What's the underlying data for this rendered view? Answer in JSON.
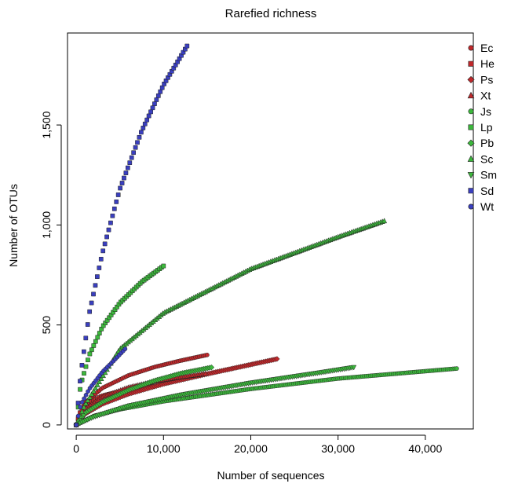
{
  "chart_data": {
    "type": "scatter",
    "title": "Rarefied richness",
    "xlabel": "Number of sequences",
    "ylabel": "Number of OTUs",
    "xlim": [
      -1000,
      45500
    ],
    "ylim": [
      -20,
      1960
    ],
    "x_ticks": [
      0,
      10000,
      20000,
      30000,
      40000
    ],
    "x_tick_labels": [
      "0",
      "10,000",
      "20,000",
      "30,000",
      "40,000"
    ],
    "y_ticks": [
      0,
      500,
      1000,
      1500
    ],
    "y_tick_labels": [
      "0",
      "500",
      "1,000",
      "1,500"
    ],
    "grid": false,
    "legend_position": "top-right",
    "colors": {
      "red": "#c0282b",
      "green": "#3cb83c",
      "blue": "#3a3fbf"
    },
    "series": [
      {
        "name": "Ec",
        "color": "#c0282b",
        "marker": "circle",
        "x": [
          0,
          1000,
          3000,
          6000,
          9000,
          12000,
          15000
        ],
        "y": [
          0,
          110,
          185,
          248,
          290,
          322,
          350
        ]
      },
      {
        "name": "He",
        "color": "#c0282b",
        "marker": "square",
        "x": [
          0,
          500,
          1500,
          3000,
          5000,
          7000,
          8800
        ],
        "y": [
          0,
          70,
          112,
          145,
          167,
          182,
          192
        ]
      },
      {
        "name": "Ps",
        "color": "#c0282b",
        "marker": "diamond",
        "x": [
          0,
          1000,
          3000,
          6000,
          10000,
          15000,
          23000
        ],
        "y": [
          0,
          55,
          105,
          155,
          205,
          255,
          330
        ]
      },
      {
        "name": "Xt",
        "color": "#c0282b",
        "marker": "triangle",
        "x": [
          0,
          1000,
          3000,
          6000,
          9000,
          12000,
          14800
        ],
        "y": [
          0,
          80,
          140,
          188,
          218,
          240,
          256
        ]
      },
      {
        "name": "Js",
        "color": "#3cb83c",
        "marker": "circle",
        "x": [
          0,
          2000,
          5000,
          10000,
          20000,
          30000,
          43600
        ],
        "y": [
          0,
          45,
          78,
          118,
          180,
          232,
          282
        ]
      },
      {
        "name": "Lp",
        "color": "#3cb83c",
        "marker": "square",
        "x": [
          0,
          500,
          1500,
          3000,
          5000,
          7500,
          10000
        ],
        "y": [
          0,
          200,
          350,
          490,
          610,
          715,
          795
        ]
      },
      {
        "name": "Pb",
        "color": "#3cb83c",
        "marker": "diamond",
        "x": [
          0,
          1000,
          3000,
          6000,
          9000,
          12000,
          15500
        ],
        "y": [
          0,
          60,
          115,
          175,
          222,
          258,
          288
        ]
      },
      {
        "name": "Sc",
        "color": "#3cb83c",
        "marker": "triangle",
        "x": [
          0,
          1000,
          5000,
          10000,
          20000,
          30000,
          35300
        ],
        "y": [
          0,
          100,
          380,
          560,
          780,
          940,
          1020
        ]
      },
      {
        "name": "Sm",
        "color": "#3cb83c",
        "marker": "triangle-down",
        "x": [
          0,
          2000,
          6000,
          12000,
          20000,
          28000,
          31800
        ],
        "y": [
          0,
          40,
          95,
          150,
          210,
          262,
          288
        ]
      },
      {
        "name": "Sd",
        "color": "#3a3fbf",
        "marker": "square",
        "x": [
          0,
          500,
          1500,
          3000,
          5000,
          7500,
          10000,
          12700
        ],
        "y": [
          0,
          250,
          560,
          860,
          1180,
          1470,
          1700,
          1895
        ]
      },
      {
        "name": "Wt",
        "color": "#3a3fbf",
        "marker": "circle",
        "x": [
          0,
          500,
          1500,
          3000,
          4500,
          5600
        ],
        "y": [
          0,
          100,
          180,
          265,
          330,
          380
        ]
      }
    ]
  }
}
